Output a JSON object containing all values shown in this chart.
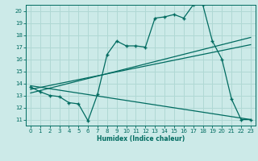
{
  "xlabel": "Humidex (Indice chaleur)",
  "bg_color": "#cceae8",
  "grid_color": "#b0d8d4",
  "line_color": "#006b60",
  "xlim": [
    -0.5,
    23.5
  ],
  "ylim": [
    10.5,
    20.5
  ],
  "xticks": [
    0,
    1,
    2,
    3,
    4,
    5,
    6,
    7,
    8,
    9,
    10,
    11,
    12,
    13,
    14,
    15,
    16,
    17,
    18,
    19,
    20,
    21,
    22,
    23
  ],
  "yticks": [
    11,
    12,
    13,
    14,
    15,
    16,
    17,
    18,
    19,
    20
  ],
  "main_x": [
    0,
    1,
    2,
    3,
    4,
    5,
    6,
    7,
    8,
    9,
    10,
    11,
    12,
    13,
    14,
    15,
    16,
    17,
    18,
    19,
    20,
    21,
    22,
    23
  ],
  "main_y": [
    13.7,
    13.3,
    13.0,
    12.9,
    12.4,
    12.3,
    10.9,
    13.1,
    16.4,
    17.5,
    17.1,
    17.1,
    17.0,
    19.4,
    19.5,
    19.7,
    19.4,
    20.5,
    20.5,
    17.5,
    16.0,
    12.7,
    11.0,
    11.0
  ],
  "line1_x": [
    0,
    23
  ],
  "line1_y": [
    13.2,
    17.8
  ],
  "line2_x": [
    0,
    23
  ],
  "line2_y": [
    13.5,
    17.2
  ],
  "line3_x": [
    0,
    23
  ],
  "line3_y": [
    13.8,
    11.0
  ],
  "label_fontsize": 5.5,
  "tick_fontsize": 5.0
}
